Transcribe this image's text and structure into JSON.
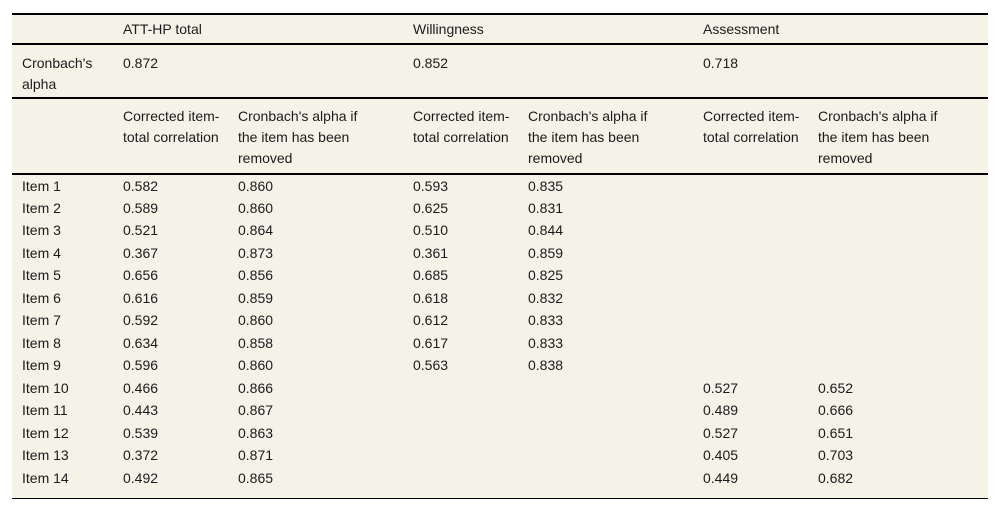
{
  "table": {
    "col_groups": [
      {
        "label": "ATT-HP total",
        "cronbach_alpha": "0.872"
      },
      {
        "label": "Willingness",
        "cronbach_alpha": "0.852"
      },
      {
        "label": "Assessment",
        "cronbach_alpha": "0.718"
      }
    ],
    "alpha_row_label": "Cronbach's alpha",
    "subheader_corrected": "Corrected item-total correlation",
    "subheader_removed": "Cronbach's alpha if the item has been removed",
    "rows": [
      {
        "label": "Item 1",
        "values": [
          "0.582",
          "0.860",
          "0.593",
          "0.835",
          "",
          ""
        ]
      },
      {
        "label": "Item 2",
        "values": [
          "0.589",
          "0.860",
          "0.625",
          "0.831",
          "",
          ""
        ]
      },
      {
        "label": "Item 3",
        "values": [
          "0.521",
          "0.864",
          "0.510",
          "0.844",
          "",
          ""
        ]
      },
      {
        "label": "Item 4",
        "values": [
          "0.367",
          "0.873",
          "0.361",
          "0.859",
          "",
          ""
        ]
      },
      {
        "label": "Item 5",
        "values": [
          "0.656",
          "0.856",
          "0.685",
          "0.825",
          "",
          ""
        ]
      },
      {
        "label": "Item 6",
        "values": [
          "0.616",
          "0.859",
          "0.618",
          "0.832",
          "",
          ""
        ]
      },
      {
        "label": "Item 7",
        "values": [
          "0.592",
          "0.860",
          "0.612",
          "0.833",
          "",
          ""
        ]
      },
      {
        "label": "Item 8",
        "values": [
          "0.634",
          "0.858",
          "0.617",
          "0.833",
          "",
          ""
        ]
      },
      {
        "label": "Item 9",
        "values": [
          "0.596",
          "0.860",
          "0.563",
          "0.838",
          "",
          ""
        ]
      },
      {
        "label": "Item 10",
        "values": [
          "0.466",
          "0.866",
          "",
          "",
          "0.527",
          "0.652"
        ]
      },
      {
        "label": "Item 11",
        "values": [
          "0.443",
          "0.867",
          "",
          "",
          "0.489",
          "0.666"
        ]
      },
      {
        "label": "Item 12",
        "values": [
          "0.539",
          "0.863",
          "",
          "",
          "0.527",
          "0.651"
        ]
      },
      {
        "label": "Item 13",
        "values": [
          "0.372",
          "0.871",
          "",
          "",
          "0.405",
          "0.703"
        ]
      },
      {
        "label": "Item 14",
        "values": [
          "0.492",
          "0.865",
          "",
          "",
          "0.449",
          "0.682"
        ]
      }
    ],
    "colors": {
      "table_background": "#f5f2e8",
      "rule": "#000000",
      "text": "#1b1b1b"
    }
  }
}
